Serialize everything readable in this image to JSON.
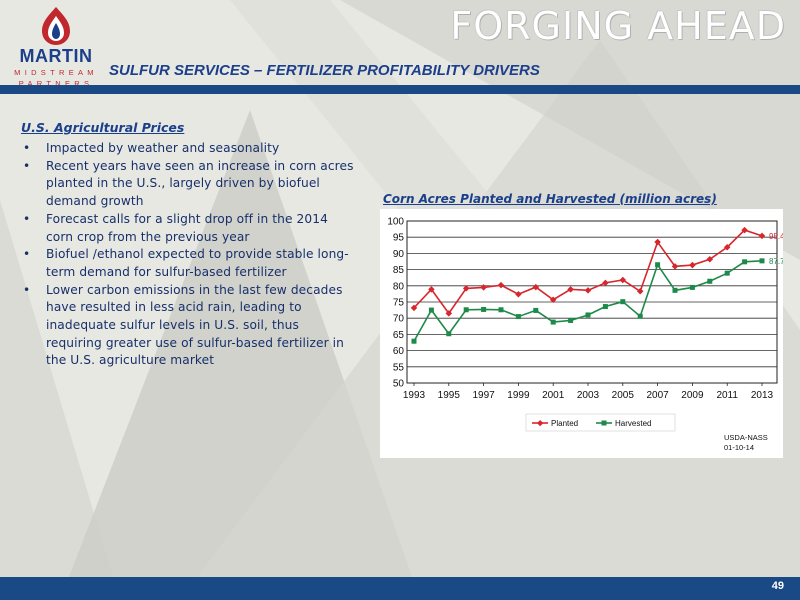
{
  "brand": {
    "logo_name": "MARTIN",
    "logo_line1": "MIDSTREAM",
    "logo_line2": "PARTNERS",
    "tagline": "FORGING AHEAD"
  },
  "slide": {
    "title": "SULFUR SERVICES – FERTILIZER PROFITABILITY DRIVERS",
    "page_number": "49"
  },
  "section": {
    "heading": "U.S. Agricultural Prices",
    "bullets": [
      [
        "Impacted by weather and seasonality"
      ],
      [
        "Recent years have seen an increase in corn acres",
        "planted in the U.S., largely driven by biofuel",
        "demand growth"
      ],
      [
        "Forecast calls for a slight drop off in the 2014",
        "corn crop from the previous year"
      ],
      [
        "Biofuel /ethanol expected to provide stable long-",
        "term demand for sulfur-based fertilizer"
      ],
      [
        "Lower carbon emissions in the last few decades",
        "have resulted in less acid rain, leading to",
        "inadequate sulfur levels in U.S. soil, thus",
        "requiring greater use of sulfur-based fertilizer in",
        "the U.S. agriculture market"
      ]
    ]
  },
  "colors": {
    "brand_blue": "#1b3f8a",
    "brand_red": "#c0282d",
    "planted": "#d7262d",
    "harvested": "#1e8a4a"
  },
  "chart_data": {
    "type": "line",
    "title": "Corn Acres Planted and Harvested (million acres)",
    "x": [
      1993,
      1994,
      1995,
      1996,
      1997,
      1998,
      1999,
      2000,
      2001,
      2002,
      2003,
      2004,
      2005,
      2006,
      2007,
      2008,
      2009,
      2010,
      2011,
      2012,
      2013
    ],
    "x_ticks": [
      "1993",
      "1995",
      "1997",
      "1999",
      "2001",
      "2003",
      "2005",
      "2007",
      "2009",
      "2011",
      "2013"
    ],
    "y_ticks": [
      "50",
      "55",
      "60",
      "65",
      "70",
      "75",
      "80",
      "85",
      "90",
      "95",
      "100"
    ],
    "ylim": [
      50,
      100
    ],
    "series": [
      {
        "name": "Planted",
        "values": [
          73.2,
          78.9,
          71.5,
          79.2,
          79.5,
          80.2,
          77.4,
          79.6,
          75.7,
          78.9,
          78.6,
          80.9,
          81.8,
          78.3,
          93.5,
          86.0,
          86.4,
          88.2,
          91.9,
          97.2,
          95.4
        ],
        "end_label": "95.4"
      },
      {
        "name": "Harvested",
        "values": [
          62.9,
          72.5,
          65.2,
          72.6,
          72.7,
          72.6,
          70.5,
          72.4,
          68.8,
          69.3,
          71.0,
          73.6,
          75.1,
          70.6,
          86.5,
          78.6,
          79.5,
          81.4,
          83.9,
          87.4,
          87.7
        ],
        "end_label": "87.7"
      }
    ],
    "source_line1": "USDA-NASS",
    "source_line2": "01-10-14",
    "grid": "horizontal",
    "legend_position": "bottom"
  }
}
